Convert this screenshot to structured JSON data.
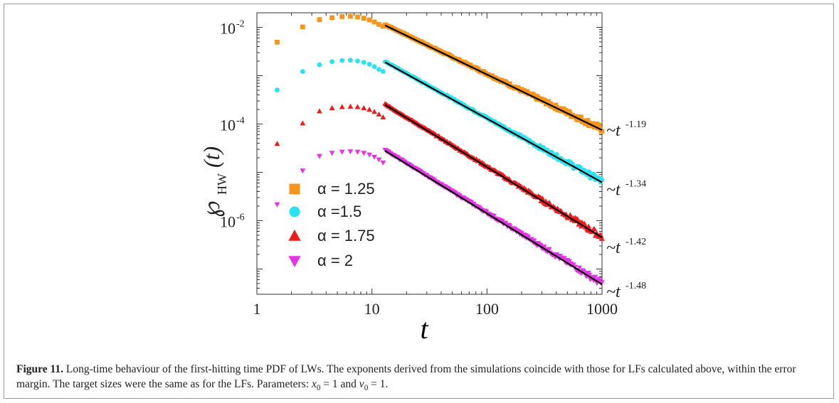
{
  "chart_data": {
    "type": "scatter",
    "xscale": "log",
    "yscale": "log",
    "xlim": [
      1,
      1000
    ],
    "ylim": [
      3e-08,
      0.02
    ],
    "x_tick_labels": [
      "1",
      "10",
      "100",
      "1000"
    ],
    "y_tick_labels": [
      {
        "base": "10",
        "exp": "-2",
        "value": 0.01
      },
      {
        "base": "10",
        "exp": "-4",
        "value": 0.0001
      },
      {
        "base": "10",
        "exp": "-6",
        "value": 1e-06
      }
    ],
    "xlabel": "t",
    "ylabel_symbol": "℘",
    "ylabel_subscript": "HW",
    "ylabel_arg": "(t)",
    "legend_position": "lower-left",
    "series": [
      {
        "name": "α = 1.25",
        "color": "#f7941d",
        "marker": "square",
        "peak_t": 6,
        "peak_y": 0.017,
        "fit_exponent": -1.19,
        "fit_label_base": "~t",
        "fit_label_exp": "-1.19"
      },
      {
        "name": "α =1.5",
        "color": "#29e3f2",
        "marker": "circle",
        "peak_t": 6,
        "peak_y": 0.0021,
        "fit_exponent": -1.34,
        "fit_label_base": "~t",
        "fit_label_exp": "-1.34"
      },
      {
        "name": "α = 1.75",
        "color": "#ef1c1c",
        "marker": "triangle-up",
        "peak_t": 6.5,
        "peak_y": 0.00023,
        "fit_exponent": -1.42,
        "fit_label_base": "~t",
        "fit_label_exp": "-1.42"
      },
      {
        "name": "α = 2",
        "color": "#e633e6",
        "marker": "triangle-down",
        "peak_t": 6.5,
        "peak_y": 2.7e-05,
        "fit_exponent": -1.48,
        "fit_label_base": "~t",
        "fit_label_exp": "-1.48"
      }
    ],
    "fit_lines": [
      {
        "series": "α = 1.25",
        "t_start": 13,
        "y_start": 0.011,
        "y_end": 7.5e-05
      },
      {
        "series": "α =1.5",
        "t_start": 13,
        "y_start": 0.0019,
        "y_end": 6.2e-06
      },
      {
        "series": "α = 1.75",
        "t_start": 13,
        "y_start": 0.00025,
        "y_end": 4.5e-07
      },
      {
        "series": "α = 2",
        "t_start": 13,
        "y_start": 2.8e-05,
        "y_end": 4.8e-08
      }
    ]
  },
  "caption": {
    "label": "Figure 11.",
    "text": " Long-time behaviour of the first-hitting time PDF of LWs. The exponents derived from the simulations coincide with those for LFs calculated above, within the error margin. The target sizes were the same as for the LFs. Parameters: ",
    "param1_var": "x",
    "param1_sub": "0",
    "param1_value": " = 1",
    "and_text": " and ",
    "param2_var": "v",
    "param2_sub": "0",
    "param2_value": " = 1",
    "end": "."
  }
}
